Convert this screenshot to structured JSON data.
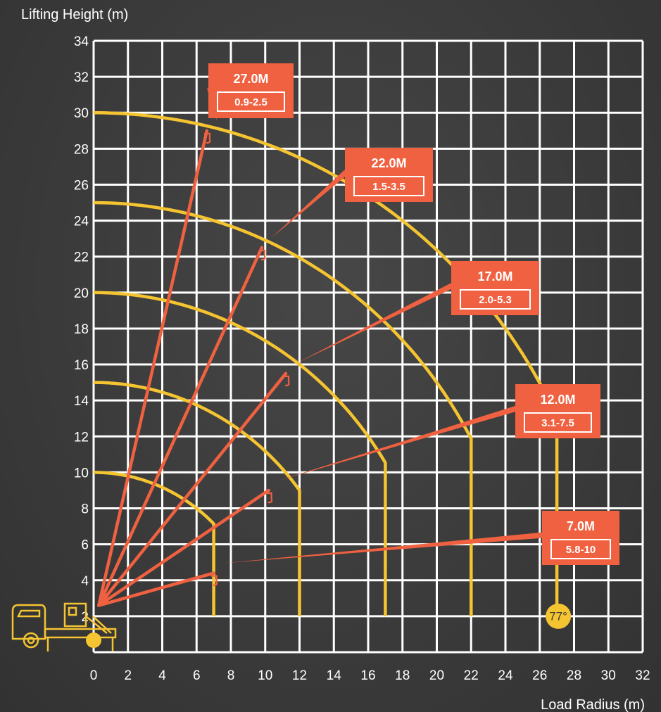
{
  "colors": {
    "background": "#3d3d3d",
    "grid": "#ffffff",
    "arc": "#f5c431",
    "boom": "#ef6140",
    "label_box": "#ef6140",
    "angle_badge": "#f5c431",
    "truck": "#f5c431"
  },
  "chart_data": {
    "type": "line",
    "xlabel": "Load Radius (m)",
    "ylabel": "Lifting Height (m)",
    "xlim": [
      0,
      32
    ],
    "ylim": [
      0,
      34
    ],
    "x_ticks": [
      "0",
      "2",
      "4",
      "6",
      "8",
      "10",
      "12",
      "14",
      "16",
      "18",
      "20",
      "22",
      "24",
      "26",
      "28",
      "30",
      "32"
    ],
    "y_ticks": [
      "2",
      "4",
      "6",
      "8",
      "10",
      "12",
      "14",
      "16",
      "18",
      "20",
      "22",
      "24",
      "26",
      "28",
      "30",
      "32",
      "34"
    ],
    "grid": true,
    "pivot": [
      0.3,
      2.6
    ],
    "max_angle_label": "77°",
    "booms": [
      {
        "length_label": "7.0M",
        "range_label": "5.8-10",
        "tip": [
          7.0,
          4.4
        ],
        "arc_radius": 10.0,
        "arc_end_x": 7.0
      },
      {
        "length_label": "12.0M",
        "range_label": "3.1-7.5",
        "tip": [
          10.2,
          9.0
        ],
        "arc_radius": 15.0,
        "arc_end_x": 12.0
      },
      {
        "length_label": "17.0M",
        "range_label": "2.0-5.3",
        "tip": [
          11.2,
          15.5
        ],
        "arc_radius": 20.0,
        "arc_end_x": 17.0
      },
      {
        "length_label": "22.0M",
        "range_label": "1.5-3.5",
        "tip": [
          9.8,
          22.5
        ],
        "arc_radius": 25.0,
        "arc_end_x": 22.0
      },
      {
        "length_label": "27.0M",
        "range_label": "0.9-2.5",
        "tip": [
          6.6,
          29.0
        ],
        "arc_radius": 30.0,
        "arc_end_x": 27.0
      }
    ]
  }
}
